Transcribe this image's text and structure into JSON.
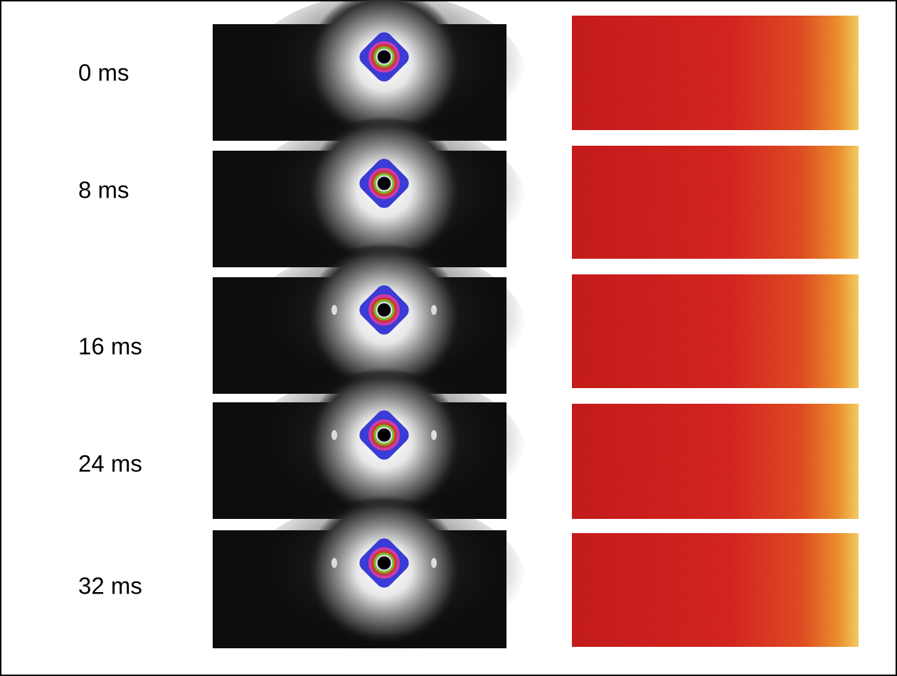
{
  "rows": [
    {
      "label": "0 ms"
    },
    {
      "label": "8 ms"
    },
    {
      "label": "16 ms"
    },
    {
      "label": "24 ms"
    },
    {
      "label": "32 ms"
    }
  ]
}
